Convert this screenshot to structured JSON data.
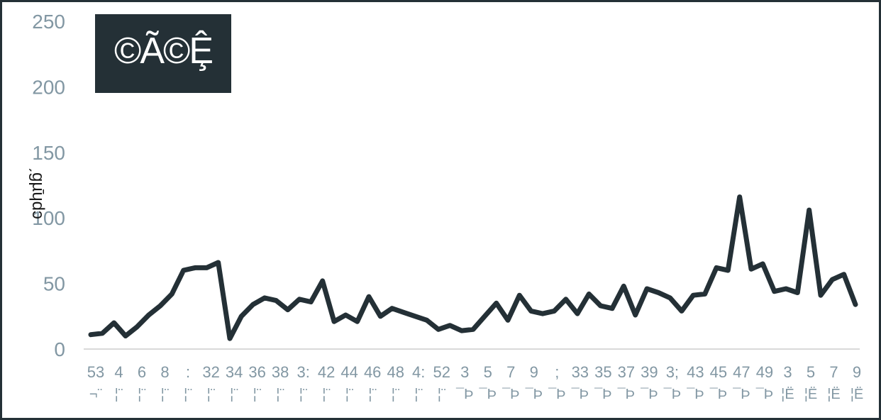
{
  "colors": {
    "line": "#243036",
    "axis_text": "#8297a3",
    "title_bg": "#243036",
    "title_text": "#ffffff",
    "axis_line": "#d9d9d9"
  },
  "chart_data": {
    "type": "line",
    "title": "©Ã©Ȩ̂",
    "ylabel": "ˏgµ̄ɥdɔ",
    "ylim": [
      0,
      250
    ],
    "yticks": [
      "0",
      "50",
      "100",
      "150",
      "200",
      "250"
    ],
    "grid": false,
    "legend": "none",
    "x_tick_labels": [
      "53",
      "4",
      "6",
      "8",
      ":",
      "32",
      "34",
      "36",
      "38",
      "3:",
      "42",
      "44",
      "46",
      "48",
      "4:",
      "52",
      "3",
      "5",
      "7",
      "9",
      ";",
      "33",
      "35",
      "37",
      "39",
      "3;",
      "43",
      "45",
      "47",
      "49",
      "3",
      "5",
      "7",
      "9"
    ],
    "x_tick_sublabels": [
      "¬¨",
      "¦¨",
      "¦¨",
      "¦¨",
      "¦¨",
      "¦¨",
      "¦¨",
      "¦¨",
      "¦¨",
      "¦¨",
      "¦¨",
      "¦¨",
      "¦¨",
      "¦¨",
      "¦¨",
      "¦¨",
      "¯Þ",
      "¯Þ",
      "¯Þ",
      "¯Þ",
      "¯Þ",
      "¯Þ",
      "¯Þ",
      "¯Þ",
      "¯Þ",
      "¯Þ",
      "¯Þ",
      "¯Þ",
      "¯Þ",
      "¯Þ",
      "¦Ë",
      "¦Ë",
      "¦Ë",
      "¦Ë"
    ],
    "series": [
      {
        "values": [
          11,
          12,
          20,
          10,
          17,
          26,
          33,
          42,
          60,
          62,
          62,
          66,
          8,
          25,
          34,
          39,
          37,
          30,
          38,
          36,
          52,
          21,
          26,
          21,
          40,
          25,
          31,
          28,
          25,
          22,
          15,
          18,
          14,
          15,
          25,
          35,
          22,
          41,
          29,
          27,
          29,
          38,
          27,
          42,
          33,
          31,
          48,
          26,
          46,
          43,
          39,
          29,
          41,
          42,
          62,
          60,
          116,
          61,
          65,
          44,
          46,
          43,
          106,
          41,
          53,
          57,
          34
        ]
      }
    ]
  }
}
